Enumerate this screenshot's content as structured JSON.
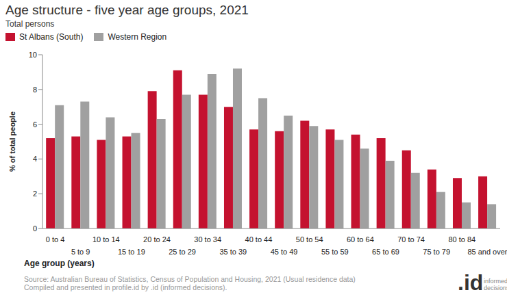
{
  "chart_data": {
    "type": "bar",
    "title": "Age structure - five year age groups, 2021",
    "subtitle": "Total persons",
    "xlabel": "Age group (years)",
    "ylabel": "% of total people",
    "categories": [
      "0 to 4",
      "5 to 9",
      "10 to 14",
      "15 to 19",
      "20 to 24",
      "25 to 29",
      "30 to 34",
      "35 to 39",
      "40 to 44",
      "45 to 49",
      "50 to 54",
      "55 to 59",
      "60 to 64",
      "65 to 69",
      "70 to 74",
      "75 to 79",
      "80 to 84",
      "85 and over"
    ],
    "series": [
      {
        "name": "St Albans (South)",
        "color": "#c4122f",
        "values": [
          5.2,
          5.3,
          5.1,
          5.3,
          7.9,
          9.1,
          7.7,
          7.0,
          5.7,
          5.6,
          6.2,
          5.7,
          5.4,
          5.2,
          4.5,
          3.4,
          2.9,
          3.0
        ]
      },
      {
        "name": "Western Region",
        "color": "#a0a0a0",
        "values": [
          7.1,
          7.3,
          6.4,
          5.5,
          6.3,
          7.7,
          8.9,
          9.2,
          7.5,
          6.5,
          5.9,
          5.1,
          4.6,
          3.9,
          3.2,
          2.1,
          1.5,
          1.4
        ]
      }
    ],
    "ylim": [
      0,
      10
    ],
    "yticks": [
      0,
      2,
      4,
      6,
      8,
      10
    ],
    "grid": false,
    "legend": "top-left",
    "annotations": [
      "Source: Australian Bureau of Statistics, Census of Population and Housing, 2021 (Usual residence data)",
      "Compiled and presented in profile.id by .id (informed decisions).",
      ".id",
      "informed decisions"
    ]
  }
}
